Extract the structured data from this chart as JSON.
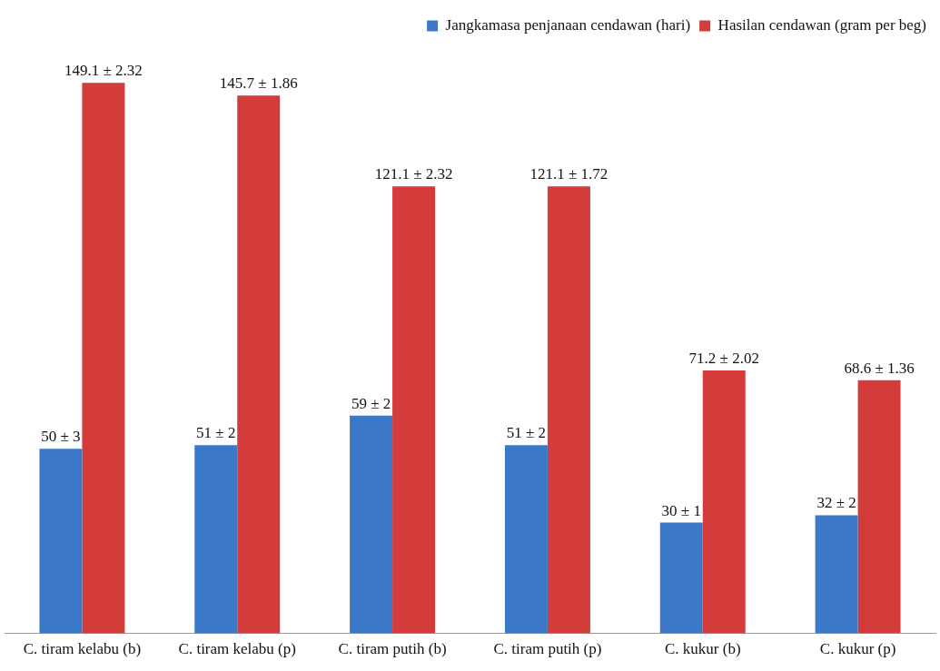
{
  "chart_data": {
    "type": "bar",
    "categories": [
      "C. tiram kelabu (b)",
      "C. tiram kelabu (p)",
      "C. tiram putih (b)",
      "C. tiram putih (p)",
      "C. kukur (b)",
      "C. kukur (p)"
    ],
    "series": [
      {
        "name": "Jangkamasa penjanaan cendawan (hari)",
        "color": "#3b78c8",
        "values": [
          50,
          51,
          59,
          51,
          30,
          32
        ],
        "value_labels": [
          "50 ± 3",
          "51 ± 2",
          "59 ± 2",
          "51 ± 2",
          "30 ± 1",
          "32 ± 2"
        ]
      },
      {
        "name": "Hasilan cendawan (gram per beg)",
        "color": "#d43b3b",
        "values": [
          149.1,
          145.7,
          121.1,
          121.1,
          71.2,
          68.6
        ],
        "value_labels": [
          "149.1 ± 2.32",
          "145.7 ± 1.86",
          "121.1 ± 2.32",
          "121.1 ± 1.72",
          "71.2 ± 2.02",
          "68.6 ± 1.36"
        ]
      }
    ],
    "legend": "top right",
    "grid": false,
    "tick_labels": "x"
  }
}
